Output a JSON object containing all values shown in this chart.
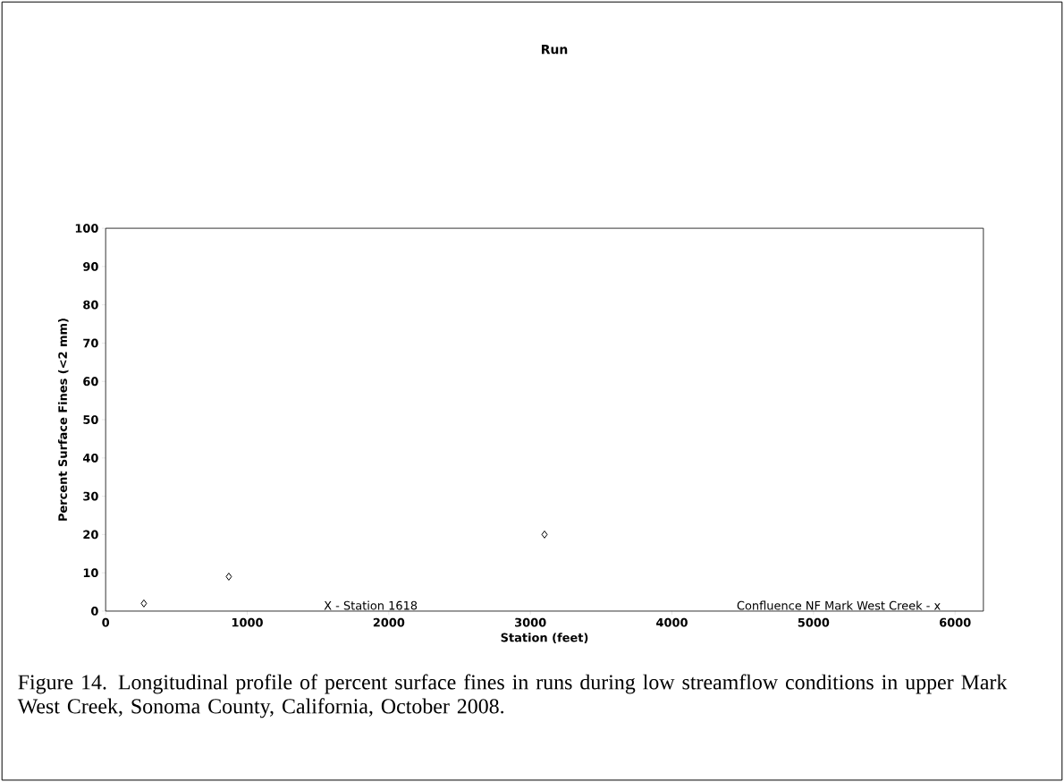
{
  "chart_data": {
    "type": "scatter",
    "title": "Run",
    "xlabel": "Station (feet)",
    "ylabel": "Percent Surface Fines (<2 mm)",
    "x": [
      270,
      870,
      3100
    ],
    "values": [
      2,
      9,
      20
    ],
    "color": "#000000",
    "marker": "diamond",
    "xlim": [
      0,
      6200
    ],
    "ylim": [
      0,
      100
    ],
    "xticks": [
      0,
      1000,
      2000,
      3000,
      4000,
      5000,
      6000
    ],
    "yticks": [
      0,
      10,
      20,
      30,
      40,
      50,
      60,
      70,
      80,
      90,
      100
    ],
    "grid": false,
    "annotations": [
      "X - Station 1618",
      "Confluence NF Mark West Creek - x",
      "Figure 14.  Longitudinal profile of percent surface fines in runs during low streamflow conditions in upper Mark West Creek, Sonoma County, California, October 2008."
    ]
  }
}
